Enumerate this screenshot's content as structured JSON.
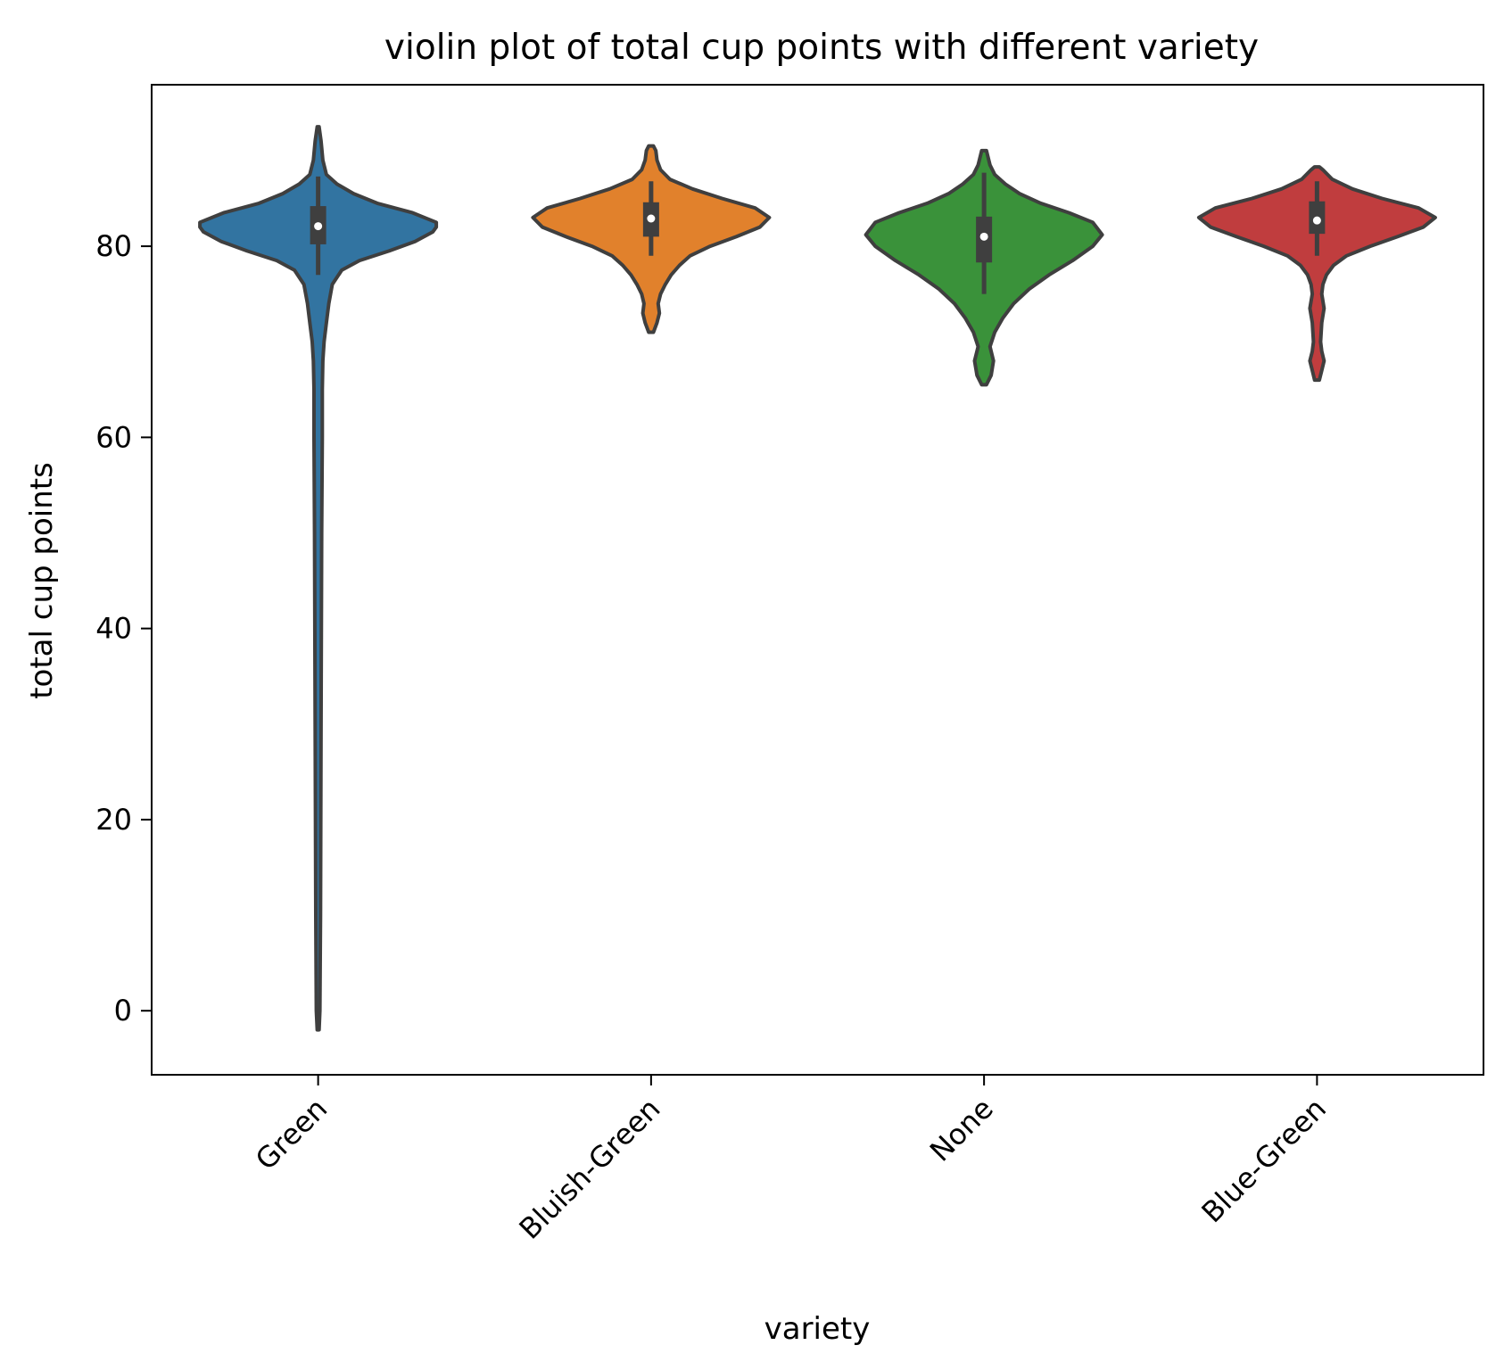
{
  "chart_data": {
    "type": "violin",
    "title": "violin plot of total cup points with different variety",
    "xlabel": "variety",
    "ylabel": "total cup points",
    "ylim": [
      -6.7,
      96.9
    ],
    "yticks": [
      0,
      20,
      40,
      60,
      80
    ],
    "categories": [
      "Green",
      "Bluish-Green",
      "None",
      "Blue-Green"
    ],
    "colors": [
      "#3274a1",
      "#e1812c",
      "#3a923a",
      "#c03d3e"
    ],
    "grid": false,
    "legend": "none",
    "series": [
      {
        "category": "Green",
        "min": 0,
        "q1": 80.2,
        "median": 82.1,
        "q3": 84.2,
        "whisker_low": 77.0,
        "whisker_high": 87.3,
        "density": [
          [
            -2.0,
            0.008
          ],
          [
            0,
            0.015
          ],
          [
            10,
            0.02
          ],
          [
            30,
            0.025
          ],
          [
            50,
            0.03
          ],
          [
            60,
            0.035
          ],
          [
            65,
            0.035
          ],
          [
            68,
            0.04
          ],
          [
            70,
            0.05
          ],
          [
            72,
            0.07
          ],
          [
            74,
            0.09
          ],
          [
            76,
            0.12
          ],
          [
            77.5,
            0.2
          ],
          [
            78.5,
            0.35
          ],
          [
            79.5,
            0.6
          ],
          [
            80.5,
            0.82
          ],
          [
            81.5,
            0.97
          ],
          [
            82,
            1.0
          ],
          [
            82.5,
            1.0
          ],
          [
            83.5,
            0.8
          ],
          [
            84.5,
            0.5
          ],
          [
            85.5,
            0.3
          ],
          [
            86.5,
            0.16
          ],
          [
            87.5,
            0.07
          ],
          [
            89,
            0.04
          ],
          [
            91,
            0.025
          ],
          [
            92.5,
            0.008
          ]
        ]
      },
      {
        "category": "Bluish-Green",
        "min": 71.5,
        "q1": 81.0,
        "median": 82.9,
        "q3": 84.6,
        "whisker_low": 79.0,
        "whisker_high": 86.8,
        "density": [
          [
            71,
            0.02
          ],
          [
            72,
            0.05
          ],
          [
            73,
            0.07
          ],
          [
            74,
            0.06
          ],
          [
            75,
            0.08
          ],
          [
            76,
            0.12
          ],
          [
            77,
            0.17
          ],
          [
            78,
            0.24
          ],
          [
            79,
            0.33
          ],
          [
            80,
            0.5
          ],
          [
            81,
            0.72
          ],
          [
            82,
            0.92
          ],
          [
            83,
            1.0
          ],
          [
            84,
            0.88
          ],
          [
            85,
            0.6
          ],
          [
            86,
            0.35
          ],
          [
            87,
            0.16
          ],
          [
            88,
            0.08
          ],
          [
            89,
            0.05
          ],
          [
            90,
            0.04
          ],
          [
            90.5,
            0.02
          ]
        ]
      },
      {
        "category": "None",
        "min": 66.0,
        "q1": 78.3,
        "median": 81.0,
        "q3": 83.1,
        "whisker_low": 75.0,
        "whisker_high": 87.7,
        "density": [
          [
            65.5,
            0.02
          ],
          [
            66.5,
            0.06
          ],
          [
            68,
            0.08
          ],
          [
            69.5,
            0.05
          ],
          [
            71,
            0.09
          ],
          [
            72.5,
            0.16
          ],
          [
            74,
            0.25
          ],
          [
            75.5,
            0.38
          ],
          [
            77,
            0.55
          ],
          [
            78.5,
            0.75
          ],
          [
            80,
            0.92
          ],
          [
            81.2,
            1.0
          ],
          [
            82.5,
            0.92
          ],
          [
            83.5,
            0.72
          ],
          [
            84.5,
            0.48
          ],
          [
            85.5,
            0.3
          ],
          [
            86.5,
            0.18
          ],
          [
            87.5,
            0.09
          ],
          [
            88.5,
            0.05
          ],
          [
            90,
            0.02
          ]
        ]
      },
      {
        "category": "Blue-Green",
        "min": 67.0,
        "q1": 81.3,
        "median": 82.7,
        "q3": 84.7,
        "whisker_low": 79.0,
        "whisker_high": 86.8,
        "density": [
          [
            66,
            0.02
          ],
          [
            67,
            0.04
          ],
          [
            68,
            0.06
          ],
          [
            69,
            0.04
          ],
          [
            70,
            0.03
          ],
          [
            72,
            0.04
          ],
          [
            73.5,
            0.06
          ],
          [
            75,
            0.04
          ],
          [
            76,
            0.05
          ],
          [
            77,
            0.08
          ],
          [
            78,
            0.14
          ],
          [
            79,
            0.25
          ],
          [
            80,
            0.45
          ],
          [
            81,
            0.68
          ],
          [
            82,
            0.9
          ],
          [
            83,
            1.0
          ],
          [
            84,
            0.86
          ],
          [
            85,
            0.55
          ],
          [
            86,
            0.3
          ],
          [
            87,
            0.13
          ],
          [
            88,
            0.05
          ],
          [
            88.3,
            0.02
          ]
        ]
      }
    ]
  }
}
